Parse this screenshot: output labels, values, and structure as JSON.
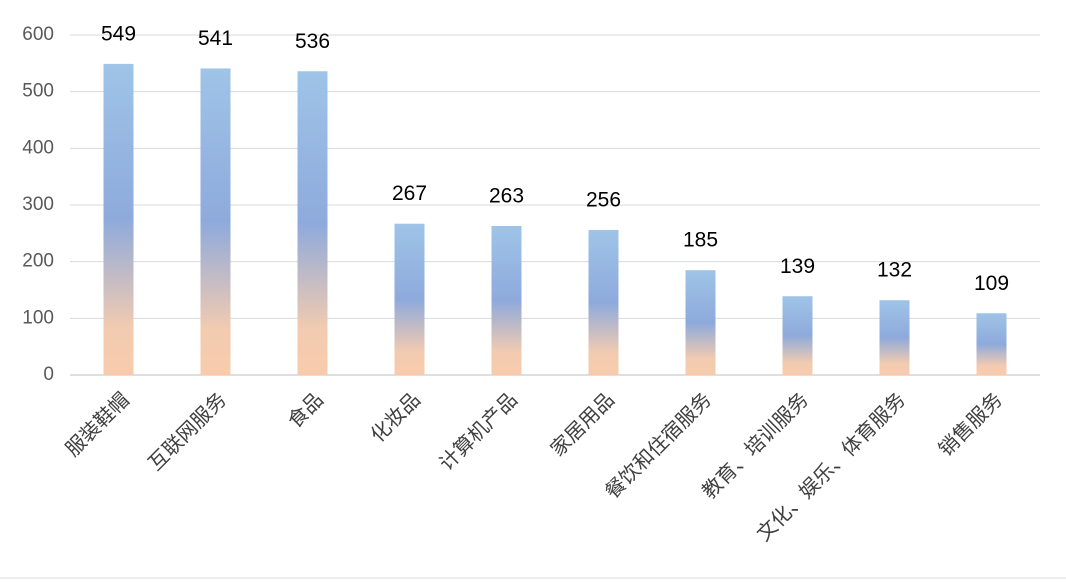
{
  "chart_data": {
    "type": "bar",
    "categories": [
      "服装鞋帽",
      "互联网服务",
      "食品",
      "化妆品",
      "计算机产品",
      "家居用品",
      "餐饮和住宿服务",
      "教育、培训服务",
      "文化、娱乐、体育服务",
      "销售服务"
    ],
    "values": [
      549,
      541,
      536,
      267,
      263,
      256,
      185,
      139,
      132,
      109
    ],
    "color": "#9dc3e6",
    "ylim": [
      0,
      600
    ],
    "yticks": [
      0,
      100,
      200,
      300,
      400,
      500,
      600
    ],
    "grid": true
  }
}
